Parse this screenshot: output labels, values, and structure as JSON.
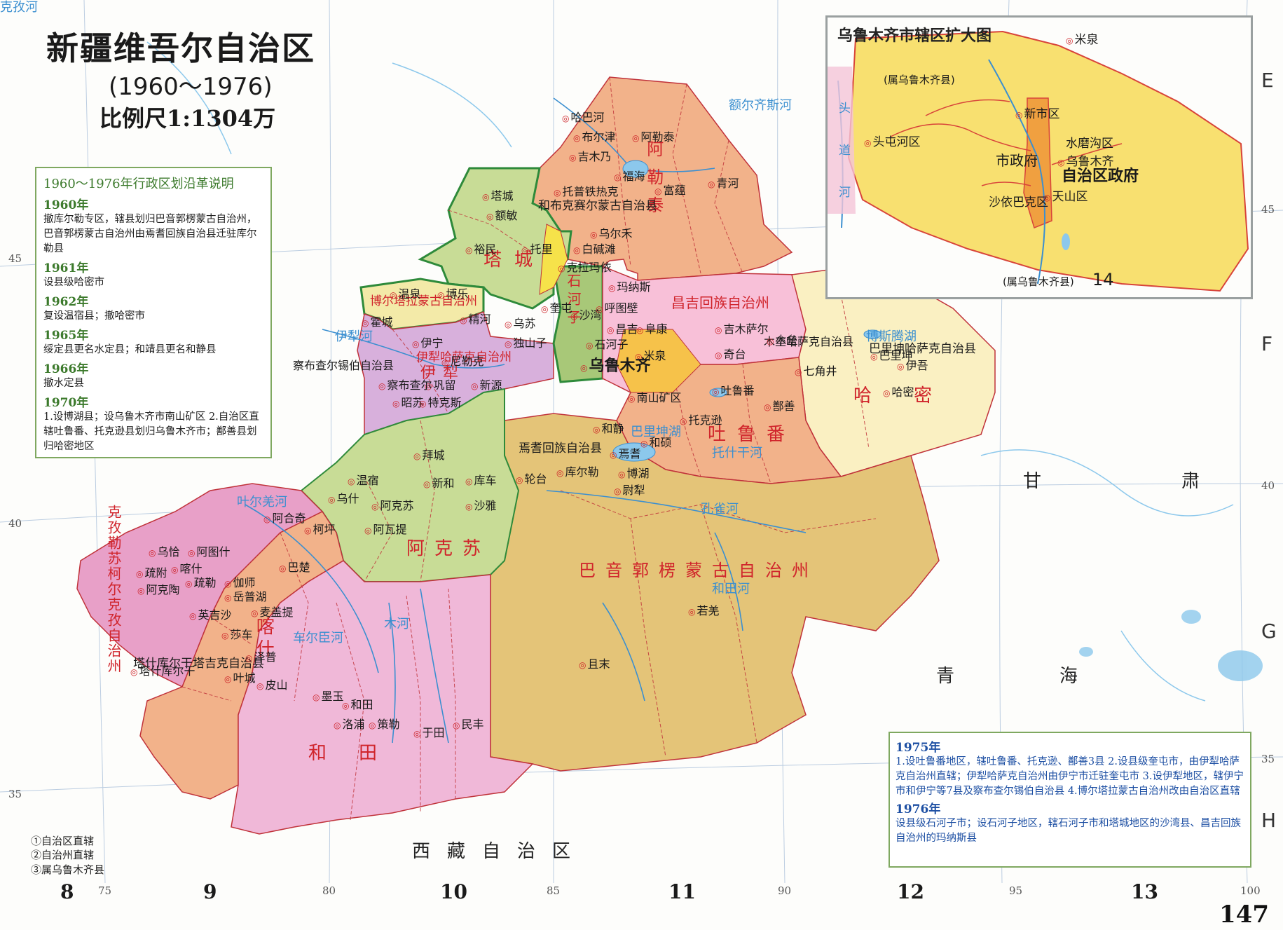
{
  "title": {
    "main": "新疆维吾尔自治区",
    "years": "(1960～1976)",
    "scale": "比例尺1:1304万"
  },
  "history": {
    "heading": "1960～1976年行政区划沿革说明",
    "entries": [
      {
        "year": "1960年",
        "text": "撤库尔勒专区，辖县划归巴音郭楞蒙古自治州，巴音郭楞蒙古自治州由焉耆回族自治县迁驻库尔勒县"
      },
      {
        "year": "1961年",
        "text": "设县级哈密市"
      },
      {
        "year": "1962年",
        "text": "复设温宿县；撤哈密市"
      },
      {
        "year": "1965年",
        "text": "绥定县更名水定县；和靖县更名和静县"
      },
      {
        "year": "1966年",
        "text": "撤水定县"
      },
      {
        "year": "1970年",
        "text": "1.设博湖县；设乌鲁木齐市南山矿区 2.自治区直辖吐鲁番、托克逊县划归乌鲁木齐市；鄯善县划归哈密地区"
      }
    ]
  },
  "notes_1975_1976": {
    "entries": [
      {
        "year": "1975年",
        "text": "1.设吐鲁番地区，辖吐鲁番、托克逊、鄯善3县 2.设县级奎屯市，由伊犁哈萨克自治州直辖；伊犁哈萨克自治州由伊宁市迁驻奎屯市 3.设伊犁地区，辖伊宁市和伊宁等7县及察布查尔锡伯自治县 4.博尔塔拉蒙古自治州改由自治区直辖"
      },
      {
        "year": "1976年",
        "text": "设县级石河子市；设石河子地区，辖石河子市和塔城地区的沙湾县、昌吉回族自治州的玛纳斯县"
      }
    ]
  },
  "legend": [
    "①自治区直辖",
    "②自治州直辖",
    "③属乌鲁木齐县"
  ],
  "inset": {
    "title": "乌鲁木齐市辖区扩大图",
    "labels": [
      "米泉",
      "(属乌鲁木齐县)",
      "新市区",
      "水磨沟区",
      "头屯河区",
      "市政府",
      "乌鲁木齐",
      "自治区政府",
      "沙依巴克区",
      "天山区",
      "(属乌鲁木齐县)",
      "14"
    ],
    "river_labels": [
      "头",
      "道",
      "河"
    ]
  },
  "regions": {
    "major": [
      "阿勒泰",
      "塔城",
      "哈密",
      "吐鲁番",
      "阿克苏",
      "巴音郭楞蒙古自治州",
      "喀什",
      "和田",
      "克孜勒苏柯尔克孜自治州",
      "伊犁",
      "石河子"
    ],
    "secondary": [
      "博尔塔拉蒙古自治州",
      "昌吉回族自治州",
      "伊犁哈萨克自治州",
      "焉耆回族自治县",
      "塔什库尔干塔吉克自治县",
      "和布克赛尔蒙古自治县",
      "巴里坤哈萨克自治县",
      "木垒哈萨克自治县",
      "察布查尔锡伯自治县"
    ],
    "neighbors": [
      "甘",
      "肃",
      "青",
      "海",
      "西藏自治区"
    ]
  },
  "cities": [
    "哈巴河",
    "布尔津",
    "阿勒泰",
    "吉木乃",
    "福海",
    "富蕴",
    "青河",
    "托普铁热克",
    "塔城",
    "额敏",
    "乌尔禾",
    "白碱滩",
    "裕民",
    "托里",
    "克拉玛依",
    "温泉",
    "博乐",
    "精河",
    "霍城",
    "伊宁",
    "尼勒克",
    "巩留",
    "新源",
    "昭苏",
    "特克斯",
    "察布查尔",
    "乌苏",
    "奎屯",
    "沙湾",
    "独山子",
    "石河子",
    "玛纳斯",
    "呼图壁",
    "昌吉",
    "阜康",
    "米泉",
    "吉木萨尔",
    "奇台",
    "木垒",
    "巴里坤",
    "伊吾",
    "哈密",
    "七角井",
    "乌鲁木齐",
    "南山矿区",
    "吐鲁番",
    "鄯善",
    "托克逊",
    "和静",
    "和硕",
    "焉耆",
    "博湖",
    "库尔勒",
    "轮台",
    "尉犁",
    "拜城",
    "新和",
    "库车",
    "沙雅",
    "温宿",
    "乌什",
    "阿克苏",
    "阿合奇",
    "柯坪",
    "阿瓦提",
    "阿图什",
    "乌恰",
    "喀什",
    "疏附",
    "疏勒",
    "伽师",
    "岳普湖",
    "英吉沙",
    "阿克陶",
    "麦盖提",
    "巴楚",
    "莎车",
    "泽普",
    "叶城",
    "塔什库尔干",
    "皮山",
    "墨玉",
    "和田",
    "洛浦",
    "策勒",
    "于田",
    "民丰",
    "且末",
    "若羌"
  ],
  "rivers": [
    "额尔齐斯河",
    "伊犁河",
    "孔雀河",
    "木河",
    "和田河",
    "车尔臣河",
    "叶尔羌河",
    "托什干河",
    "博斯腾湖",
    "巴里坤湖",
    "克孜河"
  ],
  "grid": {
    "columns": [
      "8",
      "9",
      "10",
      "11",
      "12",
      "13"
    ],
    "longitudes": [
      "75",
      "80",
      "85",
      "90",
      "95",
      "100"
    ],
    "rows": [
      "E",
      "F",
      "G",
      "H"
    ],
    "latitudes": [
      "45",
      "40",
      "35",
      "45",
      "40",
      "35"
    ]
  },
  "page_number": "147",
  "colors": {
    "altay": "#f2b28a",
    "tacheng": "#c8dc96",
    "bortala": "#f3eaa8",
    "ili": "#d8b0dc",
    "changji": "#f8c0d8",
    "hami": "#faf0c2",
    "turpan": "#f2b28a",
    "aksu": "#c8dc96",
    "bayingol": "#e4c478",
    "kashgar": "#f2b28a",
    "kizilsu": "#e8a0c8",
    "hotan": "#f0b8d8",
    "shihezi": "#a8c878",
    "inset_bg": "#f8e070",
    "border": "#c0323a",
    "province_border": "#2e8a3a",
    "water": "#8cc8ec"
  }
}
